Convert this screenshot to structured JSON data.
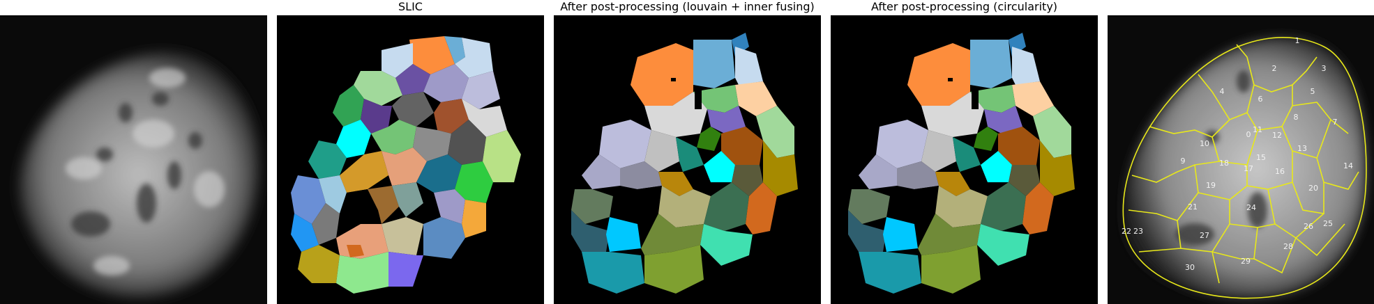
{
  "titles": {
    "panel1": "",
    "panel2": "SLIC",
    "panel3": "After post-processing (louvain + inner fusing)",
    "panel4": "After post-processing (circularity)",
    "panel5": ""
  },
  "region_labels": [
    "1",
    "2",
    "3",
    "4",
    "5",
    "6",
    "7",
    "8",
    "9",
    "10",
    "11",
    "0",
    "12",
    "13",
    "14",
    "15",
    "16",
    "17",
    "18",
    "19",
    "20",
    "21",
    "22",
    "23",
    "24",
    "25",
    "26",
    "27",
    "28",
    "29",
    "30"
  ],
  "colors": {
    "background": "#000000",
    "outline": "#e8e81a",
    "label_text": "#f2f2f2"
  }
}
